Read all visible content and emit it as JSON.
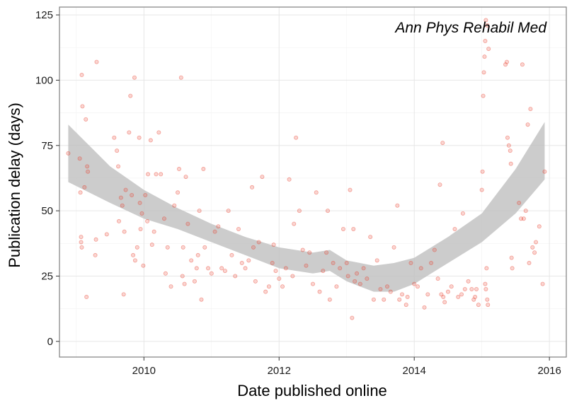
{
  "chart_data": {
    "type": "scatter",
    "title": "",
    "annotation": "Ann Phys Rehabil Med",
    "xlabel": "Date published online",
    "ylabel": "Publication delay (days)",
    "xlim": [
      2008.75,
      2016.25
    ],
    "ylim": [
      -6,
      128
    ],
    "x_ticks": [
      2010,
      2012,
      2014,
      2016
    ],
    "y_ticks": [
      0,
      25,
      50,
      75,
      100,
      125
    ],
    "grid": true,
    "legend": "none",
    "point_color": "#e8402f",
    "band_color": "#bfbfbf",
    "points": [
      [
        2008.88,
        72
      ],
      [
        2009.05,
        70
      ],
      [
        2009.06,
        57
      ],
      [
        2009.07,
        40
      ],
      [
        2009.07,
        38
      ],
      [
        2009.08,
        36
      ],
      [
        2009.08,
        102
      ],
      [
        2009.09,
        90
      ],
      [
        2009.12,
        59
      ],
      [
        2009.14,
        85
      ],
      [
        2009.16,
        67
      ],
      [
        2009.17,
        65
      ],
      [
        2009.15,
        17
      ],
      [
        2009.28,
        33
      ],
      [
        2009.29,
        39
      ],
      [
        2009.3,
        107
      ],
      [
        2009.45,
        41
      ],
      [
        2009.56,
        78
      ],
      [
        2009.6,
        73
      ],
      [
        2009.62,
        67
      ],
      [
        2009.63,
        46
      ],
      [
        2009.66,
        55
      ],
      [
        2009.68,
        52
      ],
      [
        2009.7,
        18
      ],
      [
        2009.71,
        42
      ],
      [
        2009.73,
        58
      ],
      [
        2009.78,
        80
      ],
      [
        2009.8,
        94
      ],
      [
        2009.82,
        56
      ],
      [
        2009.84,
        33
      ],
      [
        2009.86,
        101
      ],
      [
        2009.87,
        31
      ],
      [
        2009.9,
        36
      ],
      [
        2009.93,
        78
      ],
      [
        2009.94,
        53
      ],
      [
        2009.95,
        43
      ],
      [
        2009.97,
        49
      ],
      [
        2009.99,
        29
      ],
      [
        2010.02,
        56
      ],
      [
        2010.05,
        46
      ],
      [
        2010.06,
        64
      ],
      [
        2010.1,
        77
      ],
      [
        2010.12,
        37
      ],
      [
        2010.15,
        42
      ],
      [
        2010.18,
        64
      ],
      [
        2010.22,
        80
      ],
      [
        2010.25,
        64
      ],
      [
        2010.3,
        47
      ],
      [
        2010.32,
        26
      ],
      [
        2010.35,
        36
      ],
      [
        2010.4,
        21
      ],
      [
        2010.45,
        52
      ],
      [
        2010.5,
        57
      ],
      [
        2010.52,
        66
      ],
      [
        2010.55,
        101
      ],
      [
        2010.57,
        25
      ],
      [
        2010.58,
        36
      ],
      [
        2010.6,
        22
      ],
      [
        2010.62,
        63
      ],
      [
        2010.65,
        45
      ],
      [
        2010.7,
        31
      ],
      [
        2010.75,
        23
      ],
      [
        2010.78,
        28
      ],
      [
        2010.8,
        33
      ],
      [
        2010.82,
        50
      ],
      [
        2010.85,
        16
      ],
      [
        2010.88,
        66
      ],
      [
        2010.9,
        36
      ],
      [
        2010.95,
        28
      ],
      [
        2011.0,
        26
      ],
      [
        2011.05,
        42
      ],
      [
        2011.1,
        44
      ],
      [
        2011.15,
        28
      ],
      [
        2011.2,
        27
      ],
      [
        2011.25,
        50
      ],
      [
        2011.3,
        33
      ],
      [
        2011.35,
        25
      ],
      [
        2011.4,
        43
      ],
      [
        2011.45,
        30
      ],
      [
        2011.5,
        28
      ],
      [
        2011.55,
        31
      ],
      [
        2011.6,
        59
      ],
      [
        2011.62,
        36
      ],
      [
        2011.65,
        23
      ],
      [
        2011.7,
        38
      ],
      [
        2011.75,
        63
      ],
      [
        2011.8,
        19
      ],
      [
        2011.85,
        21
      ],
      [
        2011.9,
        30
      ],
      [
        2011.92,
        37
      ],
      [
        2011.95,
        27
      ],
      [
        2012.0,
        24
      ],
      [
        2012.05,
        21
      ],
      [
        2012.1,
        28
      ],
      [
        2012.15,
        62
      ],
      [
        2012.2,
        25
      ],
      [
        2012.22,
        45
      ],
      [
        2012.25,
        78
      ],
      [
        2012.3,
        50
      ],
      [
        2012.35,
        35
      ],
      [
        2012.4,
        29
      ],
      [
        2012.45,
        34
      ],
      [
        2012.5,
        22
      ],
      [
        2012.55,
        57
      ],
      [
        2012.6,
        19
      ],
      [
        2012.65,
        27
      ],
      [
        2012.7,
        34
      ],
      [
        2012.72,
        50
      ],
      [
        2012.75,
        16
      ],
      [
        2012.8,
        30
      ],
      [
        2012.85,
        21
      ],
      [
        2012.9,
        28
      ],
      [
        2012.95,
        43
      ],
      [
        2013.0,
        30
      ],
      [
        2013.02,
        25
      ],
      [
        2013.05,
        58
      ],
      [
        2013.08,
        9
      ],
      [
        2013.1,
        43
      ],
      [
        2013.12,
        23
      ],
      [
        2013.15,
        26
      ],
      [
        2013.2,
        22
      ],
      [
        2013.25,
        28
      ],
      [
        2013.3,
        24
      ],
      [
        2013.35,
        40
      ],
      [
        2013.4,
        16
      ],
      [
        2013.45,
        31
      ],
      [
        2013.5,
        20
      ],
      [
        2013.55,
        16
      ],
      [
        2013.6,
        21
      ],
      [
        2013.65,
        19
      ],
      [
        2013.7,
        36
      ],
      [
        2013.75,
        52
      ],
      [
        2013.78,
        16
      ],
      [
        2013.82,
        18
      ],
      [
        2013.88,
        14
      ],
      [
        2013.9,
        17
      ],
      [
        2013.95,
        30
      ],
      [
        2014.0,
        22
      ],
      [
        2014.05,
        21
      ],
      [
        2014.1,
        28
      ],
      [
        2014.15,
        13
      ],
      [
        2014.2,
        18
      ],
      [
        2014.25,
        30
      ],
      [
        2014.3,
        35
      ],
      [
        2014.35,
        24
      ],
      [
        2014.38,
        60
      ],
      [
        2014.4,
        18
      ],
      [
        2014.42,
        76
      ],
      [
        2014.43,
        17
      ],
      [
        2014.45,
        15
      ],
      [
        2014.5,
        19
      ],
      [
        2014.55,
        21
      ],
      [
        2014.6,
        43
      ],
      [
        2014.65,
        17
      ],
      [
        2014.7,
        18
      ],
      [
        2014.72,
        49
      ],
      [
        2014.75,
        20
      ],
      [
        2014.8,
        23
      ],
      [
        2014.85,
        20
      ],
      [
        2014.88,
        16
      ],
      [
        2014.9,
        17
      ],
      [
        2014.92,
        20
      ],
      [
        2014.95,
        14
      ],
      [
        2015.0,
        58
      ],
      [
        2015.01,
        65
      ],
      [
        2015.02,
        94
      ],
      [
        2015.03,
        103
      ],
      [
        2015.04,
        109
      ],
      [
        2015.05,
        115
      ],
      [
        2015.06,
        123
      ],
      [
        2015.08,
        121
      ],
      [
        2015.1,
        112
      ],
      [
        2015.05,
        22
      ],
      [
        2015.06,
        20
      ],
      [
        2015.07,
        28
      ],
      [
        2015.08,
        16
      ],
      [
        2015.09,
        14
      ],
      [
        2015.35,
        106
      ],
      [
        2015.37,
        107
      ],
      [
        2015.38,
        78
      ],
      [
        2015.4,
        75
      ],
      [
        2015.42,
        73
      ],
      [
        2015.43,
        68
      ],
      [
        2015.44,
        32
      ],
      [
        2015.45,
        28
      ],
      [
        2015.55,
        53
      ],
      [
        2015.58,
        47
      ],
      [
        2015.6,
        106
      ],
      [
        2015.62,
        47
      ],
      [
        2015.65,
        50
      ],
      [
        2015.68,
        83
      ],
      [
        2015.7,
        30
      ],
      [
        2015.72,
        89
      ],
      [
        2015.75,
        36
      ],
      [
        2015.78,
        34
      ],
      [
        2015.8,
        38
      ],
      [
        2015.85,
        44
      ],
      [
        2015.9,
        22
      ],
      [
        2015.93,
        65
      ]
    ],
    "smooth": [
      {
        "x": 2008.88,
        "lower": 61,
        "upper": 83
      },
      {
        "x": 2009.5,
        "lower": 53,
        "upper": 67
      },
      {
        "x": 2010.0,
        "lower": 47,
        "upper": 58
      },
      {
        "x": 2010.5,
        "lower": 43,
        "upper": 51
      },
      {
        "x": 2011.0,
        "lower": 38,
        "upper": 45
      },
      {
        "x": 2011.5,
        "lower": 33,
        "upper": 40
      },
      {
        "x": 2012.0,
        "lower": 28,
        "upper": 36
      },
      {
        "x": 2012.5,
        "lower": 26,
        "upper": 34
      },
      {
        "x": 2012.75,
        "lower": 27,
        "upper": 35
      },
      {
        "x": 2013.0,
        "lower": 23,
        "upper": 31
      },
      {
        "x": 2013.4,
        "lower": 19,
        "upper": 29
      },
      {
        "x": 2013.7,
        "lower": 19,
        "upper": 30
      },
      {
        "x": 2014.0,
        "lower": 22,
        "upper": 32
      },
      {
        "x": 2014.5,
        "lower": 30,
        "upper": 40
      },
      {
        "x": 2015.0,
        "lower": 38,
        "upper": 49
      },
      {
        "x": 2015.5,
        "lower": 49,
        "upper": 66
      },
      {
        "x": 2015.93,
        "lower": 62,
        "upper": 84
      }
    ]
  }
}
